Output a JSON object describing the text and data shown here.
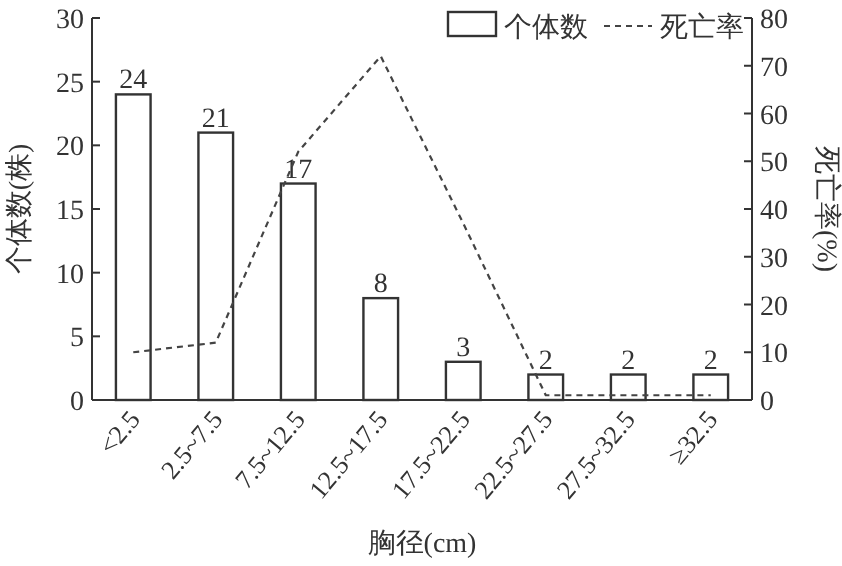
{
  "chart_data": {
    "type": "bar",
    "categories": [
      "<2.5",
      "2.5~7.5",
      "7.5~12.5",
      "12.5~17.5",
      "17.5~22.5",
      "22.5~27.5",
      "27.5~32.5",
      "≥32.5"
    ],
    "series": [
      {
        "name": "个体数",
        "color": "#333333",
        "values": [
          24,
          21,
          17,
          8,
          3,
          2,
          2,
          2
        ],
        "value_labels": [
          "24",
          "21",
          "17",
          "8",
          "3",
          "2",
          "2",
          "2"
        ]
      },
      {
        "name": "死亡率",
        "type": "line",
        "axis": "y2",
        "color": "#444444",
        "line_style": "dashed",
        "values": [
          10,
          12,
          52,
          72,
          37,
          1,
          1,
          1
        ]
      }
    ],
    "xlabel": "胸径(cm)",
    "ylabel": "个体数(株)",
    "y2label": "死亡率(%)",
    "ylim": [
      0,
      30
    ],
    "yticks": [
      0,
      5,
      10,
      15,
      20,
      25,
      30
    ],
    "y2lim": [
      0,
      80
    ],
    "y2ticks": [
      0,
      10,
      20,
      30,
      40,
      50,
      60,
      70,
      80
    ],
    "legend": "top right",
    "grid": false
  }
}
